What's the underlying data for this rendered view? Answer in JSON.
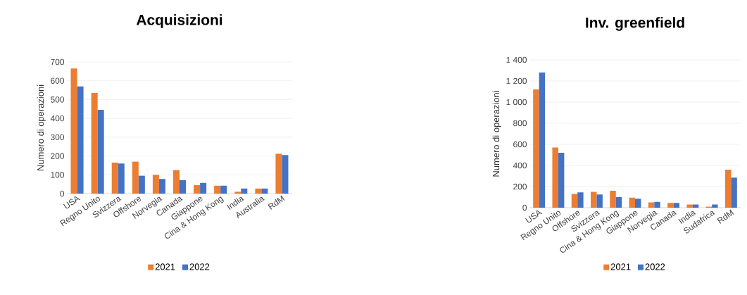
{
  "chart_data": [
    {
      "type": "bar",
      "title": "Acquisizioni",
      "ylabel": "Numero di operazioni",
      "categories": [
        "USA",
        "Regno Unito",
        "Svizzera",
        "Offshore",
        "Norvegia",
        "Canada",
        "Giappone",
        "Cina & Hong Kong",
        "India",
        "Australia",
        "RdM"
      ],
      "series": [
        {
          "name": "2021",
          "color": "#ed7d31",
          "values": [
            665,
            535,
            165,
            170,
            100,
            125,
            45,
            42,
            10,
            27,
            212
          ]
        },
        {
          "name": "2022",
          "color": "#4472c4",
          "values": [
            570,
            445,
            160,
            95,
            78,
            72,
            57,
            42,
            27,
            27,
            205
          ]
        }
      ],
      "ylim": [
        0,
        700
      ],
      "yticks": [
        0,
        100,
        200,
        300,
        400,
        500,
        600,
        700
      ],
      "grid": "y",
      "legend": "bottom"
    },
    {
      "type": "bar",
      "title": "Inv. greenfield",
      "ylabel": "Numero di operazioni",
      "categories": [
        "USA",
        "Regno Unito",
        "Offshore",
        "Svizzera",
        "Cina & Hong Kong",
        "Giappone",
        "Norvegia",
        "Canada",
        "India",
        "Sudafrica",
        "RdM"
      ],
      "series": [
        {
          "name": "2021",
          "color": "#ed7d31",
          "values": [
            1120,
            570,
            130,
            150,
            160,
            95,
            50,
            45,
            30,
            10,
            360
          ]
        },
        {
          "name": "2022",
          "color": "#4472c4",
          "values": [
            1280,
            520,
            145,
            125,
            100,
            85,
            55,
            45,
            30,
            30,
            285
          ]
        }
      ],
      "ylim": [
        0,
        1400
      ],
      "yticks": [
        0,
        200,
        400,
        600,
        800,
        {
          "value": 1000,
          "label": "1 000"
        },
        {
          "value": 1200,
          "label": "1 200"
        },
        {
          "value": 1400,
          "label": "1 400"
        }
      ],
      "grid": "y",
      "legend": "bottom"
    }
  ]
}
